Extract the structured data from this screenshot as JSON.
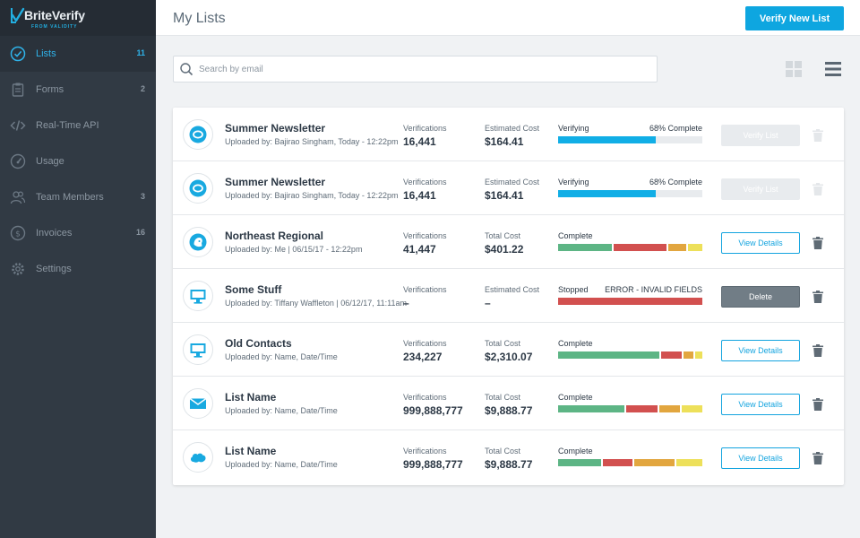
{
  "brand": {
    "name": "BriteVerify",
    "sub": "FROM VALIDITY"
  },
  "sidebar": {
    "items": [
      {
        "label": "Lists",
        "count": "11",
        "icon": "check-circle-icon",
        "active": true
      },
      {
        "label": "Forms",
        "count": "2",
        "icon": "clipboard-icon"
      },
      {
        "label": "Real-Time API",
        "count": "",
        "icon": "code-icon"
      },
      {
        "label": "Usage",
        "count": "",
        "icon": "gauge-icon"
      },
      {
        "label": "Team Members",
        "count": "3",
        "icon": "users-icon"
      },
      {
        "label": "Invoices",
        "count": "16",
        "icon": "dollar-icon"
      },
      {
        "label": "Settings",
        "count": "",
        "icon": "gear-icon"
      }
    ]
  },
  "header": {
    "title": "My Lists",
    "verify_new_label": "Verify New List"
  },
  "search": {
    "placeholder": "Search by email",
    "value": ""
  },
  "colors": {
    "accent": "#0ea6e0",
    "green": "#5db585",
    "red": "#d2504f",
    "orange": "#e2a63f",
    "yellow": "#ede05a",
    "blue": "#11aee6"
  },
  "rows": [
    {
      "name": "Summer Newsletter",
      "uploader": "Uploaded by: Bajirao Singham, Today - 12:22pm",
      "icon": "constant-contact-icon",
      "verifications_label": "Verifications",
      "verifications": "16,441",
      "cost_label": "Estimated Cost",
      "cost": "$164.41",
      "status": "Verifying",
      "status_right": "68% Complete",
      "progress": 0.68,
      "action": "Verify List",
      "action_style": "disabled",
      "trash_disabled": true
    },
    {
      "name": "Summer Newsletter",
      "uploader": "Uploaded by: Bajirao Singham, Today - 12:22pm",
      "icon": "constant-contact-icon",
      "verifications_label": "Verifications",
      "verifications": "16,441",
      "cost_label": "Estimated Cost",
      "cost": "$164.41",
      "status": "Verifying",
      "status_right": "68% Complete",
      "progress": 0.68,
      "action": "Verify List",
      "action_style": "disabled",
      "trash_disabled": true
    },
    {
      "name": "Northeast Regional",
      "uploader": "Uploaded by: Me | 06/15/17 - 12:22pm",
      "icon": "mailchimp-icon",
      "verifications_label": "Verifications",
      "verifications": "41,447",
      "cost_label": "Total Cost",
      "cost": "$401.22",
      "status": "Complete",
      "status_right": "",
      "segments": [
        0.39,
        0.38,
        0.13,
        0.1
      ],
      "action": "View Details",
      "action_style": "outline",
      "trash_disabled": false
    },
    {
      "name": "Some Stuff",
      "uploader": "Uploaded by: Tiffany Waffleton | 06/12/17, 11:11am",
      "icon": "monitor-icon",
      "verifications_label": "Verifications",
      "verifications": "–",
      "cost_label": "Estimated Cost",
      "cost": "–",
      "status": "Stopped",
      "status_right": "ERROR - INVALID FIELDS",
      "error": true,
      "action": "Delete",
      "action_style": "dark",
      "trash_disabled": false
    },
    {
      "name": "Old Contacts",
      "uploader": "Uploaded by: Name, Date/Time",
      "icon": "monitor-icon",
      "verifications_label": "Verifications",
      "verifications": "234,227",
      "cost_label": "Total Cost",
      "cost": "$2,310.07",
      "status": "Complete",
      "status_right": "",
      "segments": [
        0.73,
        0.15,
        0.07,
        0.05
      ],
      "action": "View Details",
      "action_style": "outline",
      "trash_disabled": false
    },
    {
      "name": "List Name",
      "uploader": "Uploaded by: Name, Date/Time",
      "icon": "envelope-icon",
      "verifications_label": "Verifications",
      "verifications": "999,888,777",
      "cost_label": "Total Cost",
      "cost": "$9,888.77",
      "status": "Complete",
      "status_right": "",
      "segments": [
        0.48,
        0.22,
        0.15,
        0.15
      ],
      "action": "View Details",
      "action_style": "outline",
      "trash_disabled": false
    },
    {
      "name": "List Name",
      "uploader": "Uploaded by: Name, Date/Time",
      "icon": "salesforce-icon",
      "verifications_label": "Verifications",
      "verifications": "999,888,777",
      "cost_label": "Total Cost",
      "cost": "$9,888.77",
      "status": "Complete",
      "status_right": "",
      "segments": [
        0.31,
        0.21,
        0.29,
        0.19
      ],
      "action": "View Details",
      "action_style": "outline",
      "trash_disabled": false
    }
  ]
}
